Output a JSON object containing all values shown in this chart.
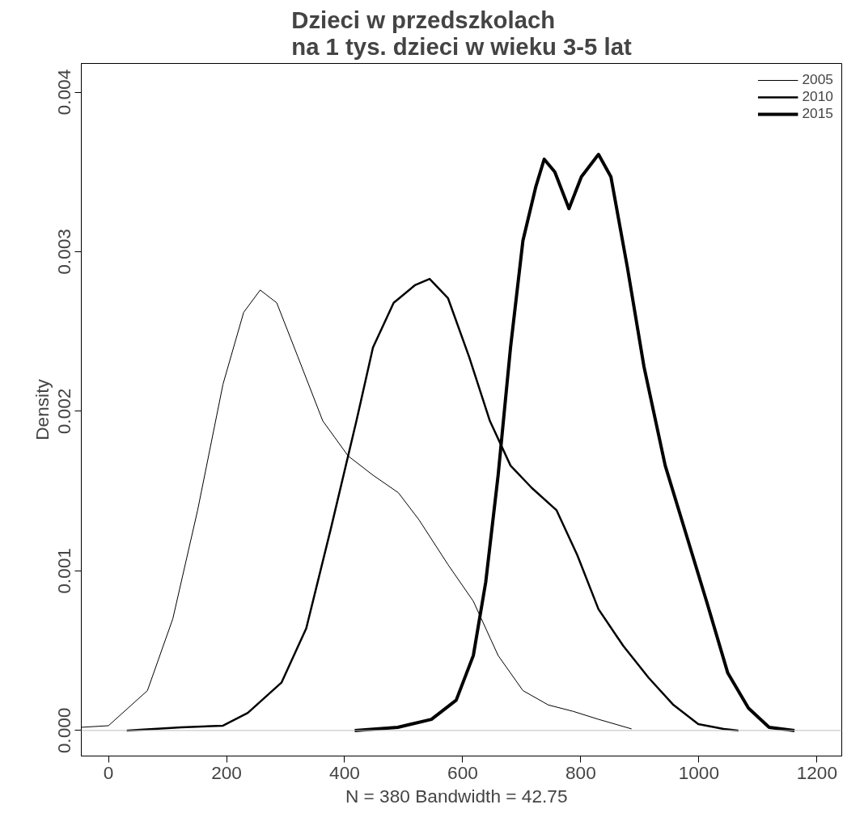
{
  "chart_data": {
    "type": "line",
    "title": "Dzieci w przedszkolach\nna 1 tys. dzieci w wieku 3-5 lat",
    "xlabel": "N = 380   Bandwidth = 42.75",
    "ylabel": "Density",
    "xlim": [
      -46,
      1242
    ],
    "ylim": [
      -0.00016,
      0.00418
    ],
    "xticks": [
      0,
      200,
      400,
      600,
      800,
      1000,
      1200
    ],
    "yticks": [
      {
        "value": 0,
        "label": "0.000"
      },
      {
        "value": 0.001,
        "label": "0.001"
      },
      {
        "value": 0.002,
        "label": "0.002"
      },
      {
        "value": 0.003,
        "label": "0.003"
      },
      {
        "value": 0.004,
        "label": "0.004"
      }
    ],
    "grid": false,
    "legend": "top right",
    "line_style": "solid",
    "marker": "none",
    "ref_lines": [
      {
        "axis": "y",
        "value": 0,
        "label": null,
        "color": "#bebebe"
      }
    ],
    "series": [
      {
        "name": "2005",
        "color": "#000000",
        "x": [
          -46,
          0,
          66,
          109,
          151,
          194,
          229,
          257,
          285,
          321,
          363,
          406,
          448,
          491,
          526,
          575,
          618,
          660,
          702,
          745,
          787,
          830,
          886
        ],
        "values": [
          2e-05,
          3e-05,
          0.00025,
          0.0007,
          0.00138,
          0.00217,
          0.00262,
          0.00276,
          0.00268,
          0.00234,
          0.00194,
          0.00172,
          0.0016,
          0.00149,
          0.00132,
          0.00104,
          0.00081,
          0.00047,
          0.00025,
          0.00016,
          0.00012,
          7e-05,
          1e-05
        ]
      },
      {
        "name": "2010",
        "color": "#000000",
        "x": [
          31,
          123,
          194,
          236,
          293,
          335,
          377,
          420,
          448,
          483,
          519,
          544,
          575,
          611,
          646,
          681,
          717,
          759,
          794,
          830,
          872,
          915,
          957,
          999,
          1042,
          1067
        ],
        "values": [
          0.0,
          2e-05,
          3e-05,
          0.00011,
          0.0003,
          0.00064,
          0.00127,
          0.00194,
          0.0024,
          0.00268,
          0.00279,
          0.00283,
          0.00271,
          0.00234,
          0.00194,
          0.00166,
          0.00152,
          0.00138,
          0.0011,
          0.00076,
          0.00053,
          0.00033,
          0.00016,
          4e-05,
          1e-05,
          0.0
        ]
      },
      {
        "name": "2015",
        "color": "#000000",
        "x": [
          417,
          490,
          547,
          589,
          618,
          639,
          660,
          681,
          702,
          724,
          738,
          756,
          780,
          801,
          830,
          851,
          879,
          907,
          943,
          971,
          1013,
          1049,
          1084,
          1119,
          1162
        ],
        "values": [
          0.0,
          2e-05,
          7e-05,
          0.00019,
          0.00047,
          0.00093,
          0.0016,
          0.0024,
          0.00307,
          0.00341,
          0.00358,
          0.0035,
          0.00327,
          0.00347,
          0.00361,
          0.00347,
          0.0029,
          0.00228,
          0.00166,
          0.00132,
          0.00081,
          0.00036,
          0.00014,
          2e-05,
          0.0
        ]
      }
    ]
  }
}
